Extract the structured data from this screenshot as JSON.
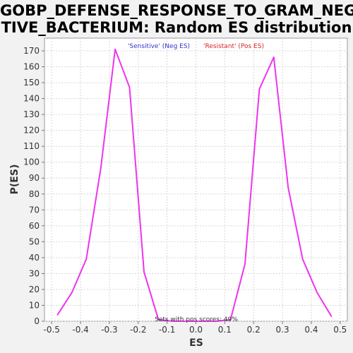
{
  "chart_data": {
    "type": "line",
    "title_line1": "GOBP_DEFENSE_RESPONSE_TO_GRAM_NEGA",
    "title_line2": "TIVE_BACTERIUM: Random ES distribution",
    "xlabel": "ES",
    "ylabel": "P(ES)",
    "xlim": [
      -0.525,
      0.525
    ],
    "ylim": [
      0,
      178
    ],
    "x_ticks": [
      -0.5,
      -0.4,
      -0.3,
      -0.2,
      -0.1,
      0.0,
      0.1,
      0.2,
      0.3,
      0.4,
      0.5
    ],
    "x_tick_labels": [
      "-0.5",
      "-0.4",
      "-0.3",
      "-0.2",
      "-0.1",
      "0.0",
      "0.1",
      "0.2",
      "0.3",
      "0.4",
      "0.5"
    ],
    "y_ticks": [
      0,
      10,
      20,
      30,
      40,
      50,
      60,
      70,
      80,
      90,
      100,
      110,
      120,
      130,
      140,
      150,
      160,
      170
    ],
    "grid": true,
    "legend": [
      {
        "label": "'Sensitive' (Neg ES)",
        "color": "#3333cc"
      },
      {
        "label": "'Resistant' (Pos ES)",
        "color": "#dd2222"
      }
    ],
    "annotation": "Sets with pos scores: 49%",
    "line_color": "#ee33ee",
    "series": [
      {
        "x": [
          -0.48,
          -0.43,
          -0.38,
          -0.33,
          -0.28,
          -0.23,
          -0.18,
          -0.13,
          -0.08,
          -0.03,
          0.02,
          0.07,
          0.12,
          0.17,
          0.22,
          0.27,
          0.32,
          0.37,
          0.42,
          0.47
        ],
        "y": [
          4,
          18,
          39,
          96,
          171,
          147,
          31,
          1,
          0,
          0,
          0,
          0,
          1,
          36,
          146,
          166,
          84,
          39,
          18,
          3
        ]
      }
    ]
  }
}
